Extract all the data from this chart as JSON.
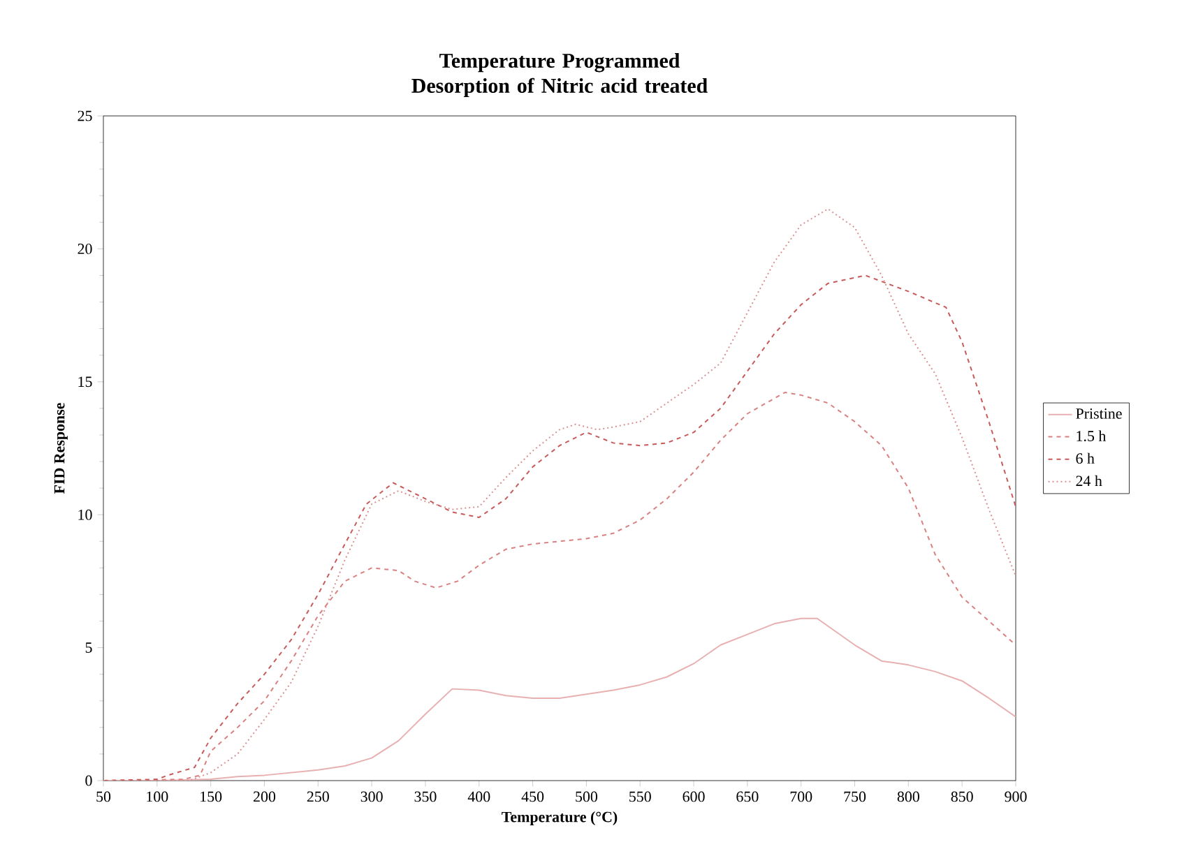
{
  "chart_data": {
    "type": "line",
    "title": "Temperature Programmed Desorption of Nitric acid treated",
    "xlabel": "Temperature (°C)",
    "ylabel": "FID Response",
    "xlim": [
      50,
      900
    ],
    "xticks": [
      50,
      100,
      150,
      200,
      250,
      300,
      350,
      400,
      450,
      500,
      550,
      600,
      650,
      700,
      750,
      800,
      850,
      900
    ],
    "ylim": [
      0,
      25
    ],
    "yticks": [
      0,
      5,
      10,
      15,
      20,
      25
    ],
    "grid": false,
    "legend": "right",
    "marker": "none",
    "series": [
      {
        "name": "Pristine",
        "color": "#e8b0b0",
        "line_style": "solid",
        "x": [
          50,
          100,
          150,
          175,
          200,
          250,
          275,
          300,
          325,
          350,
          375,
          400,
          425,
          450,
          475,
          500,
          525,
          550,
          575,
          600,
          625,
          650,
          675,
          700,
          715,
          750,
          775,
          800,
          825,
          850,
          875,
          900
        ],
        "values": [
          0,
          0,
          0.05,
          0.15,
          0.2,
          0.4,
          0.55,
          0.85,
          1.5,
          2.5,
          3.45,
          3.4,
          3.2,
          3.1,
          3.1,
          3.25,
          3.4,
          3.6,
          3.9,
          4.4,
          5.1,
          5.5,
          5.9,
          6.1,
          6.1,
          5.1,
          4.5,
          4.35,
          4.1,
          3.75,
          3.1,
          2.4
        ]
      },
      {
        "name": "1.5 h",
        "color": "#d98080",
        "line_style": "dashed",
        "x": [
          50,
          125,
          140,
          150,
          175,
          200,
          225,
          250,
          275,
          300,
          325,
          340,
          360,
          380,
          400,
          425,
          450,
          475,
          500,
          525,
          550,
          575,
          600,
          625,
          650,
          685,
          700,
          725,
          750,
          775,
          800,
          825,
          850,
          875,
          900
        ],
        "values": [
          0,
          0.05,
          0.2,
          1.1,
          2.0,
          3.0,
          4.5,
          6.2,
          7.5,
          8.0,
          7.9,
          7.5,
          7.25,
          7.5,
          8.1,
          8.7,
          8.9,
          9.0,
          9.1,
          9.3,
          9.8,
          10.6,
          11.6,
          12.8,
          13.8,
          14.6,
          14.5,
          14.2,
          13.5,
          12.6,
          11,
          8.5,
          6.9,
          6.0,
          5.1
        ]
      },
      {
        "name": "6 h",
        "color": "#c85a5a",
        "line_style": "dashed",
        "x": [
          50,
          100,
          110,
          135,
          150,
          175,
          200,
          225,
          250,
          275,
          295,
          320,
          350,
          375,
          400,
          425,
          450,
          475,
          500,
          525,
          550,
          575,
          600,
          625,
          650,
          675,
          700,
          725,
          760,
          800,
          835,
          850,
          875,
          900
        ],
        "values": [
          0,
          0.05,
          0.2,
          0.5,
          1.6,
          2.9,
          4.0,
          5.3,
          7.0,
          8.9,
          10.4,
          11.2,
          10.6,
          10.1,
          9.9,
          10.6,
          11.8,
          12.6,
          13.1,
          12.7,
          12.6,
          12.7,
          13.1,
          14.0,
          15.4,
          16.8,
          17.9,
          18.7,
          19.0,
          18.4,
          17.8,
          16.5,
          13.5,
          10.3
        ]
      },
      {
        "name": "24 h",
        "color": "#d99090",
        "line_style": "dotted",
        "x": [
          50,
          130,
          150,
          175,
          200,
          225,
          250,
          275,
          300,
          325,
          350,
          375,
          400,
          425,
          450,
          475,
          490,
          510,
          525,
          550,
          575,
          600,
          625,
          650,
          675,
          700,
          725,
          750,
          775,
          800,
          825,
          850,
          875,
          900
        ],
        "values": [
          0,
          0,
          0.3,
          1.0,
          2.3,
          3.7,
          5.8,
          8.3,
          10.4,
          10.9,
          10.5,
          10.2,
          10.3,
          11.4,
          12.4,
          13.2,
          13.4,
          13.2,
          13.3,
          13.5,
          14.2,
          14.9,
          15.7,
          17.6,
          19.5,
          20.9,
          21.5,
          20.8,
          19.0,
          16.8,
          15.3,
          12.9,
          10.2,
          7.7
        ]
      }
    ]
  }
}
